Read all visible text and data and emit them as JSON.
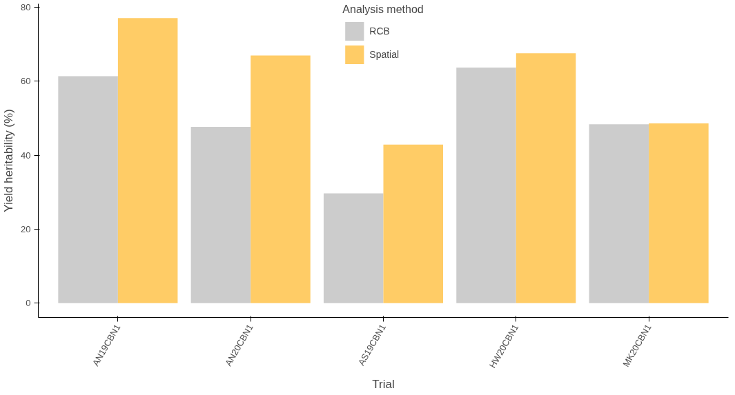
{
  "chart_data": {
    "type": "bar",
    "xlabel": "Trial",
    "ylabel": "Yield heritability (%)",
    "legend_title": "Analysis method",
    "categories": [
      "AN19CBN1",
      "AN20CBN1",
      "AS19CBN1",
      "HW20CBN1",
      "MK20CBN1"
    ],
    "series": [
      {
        "name": "RCB",
        "color": "#cccccc",
        "values": [
          61.4,
          47.7,
          29.7,
          63.7,
          48.4
        ]
      },
      {
        "name": "Spatial",
        "color": "#ffcc66",
        "values": [
          77.1,
          67.0,
          42.9,
          67.6,
          48.6
        ]
      }
    ],
    "ylim": [
      -3.86,
      80.96
    ],
    "yticks": [
      0,
      20,
      40,
      60,
      80
    ],
    "grid": false,
    "legend": "top"
  }
}
